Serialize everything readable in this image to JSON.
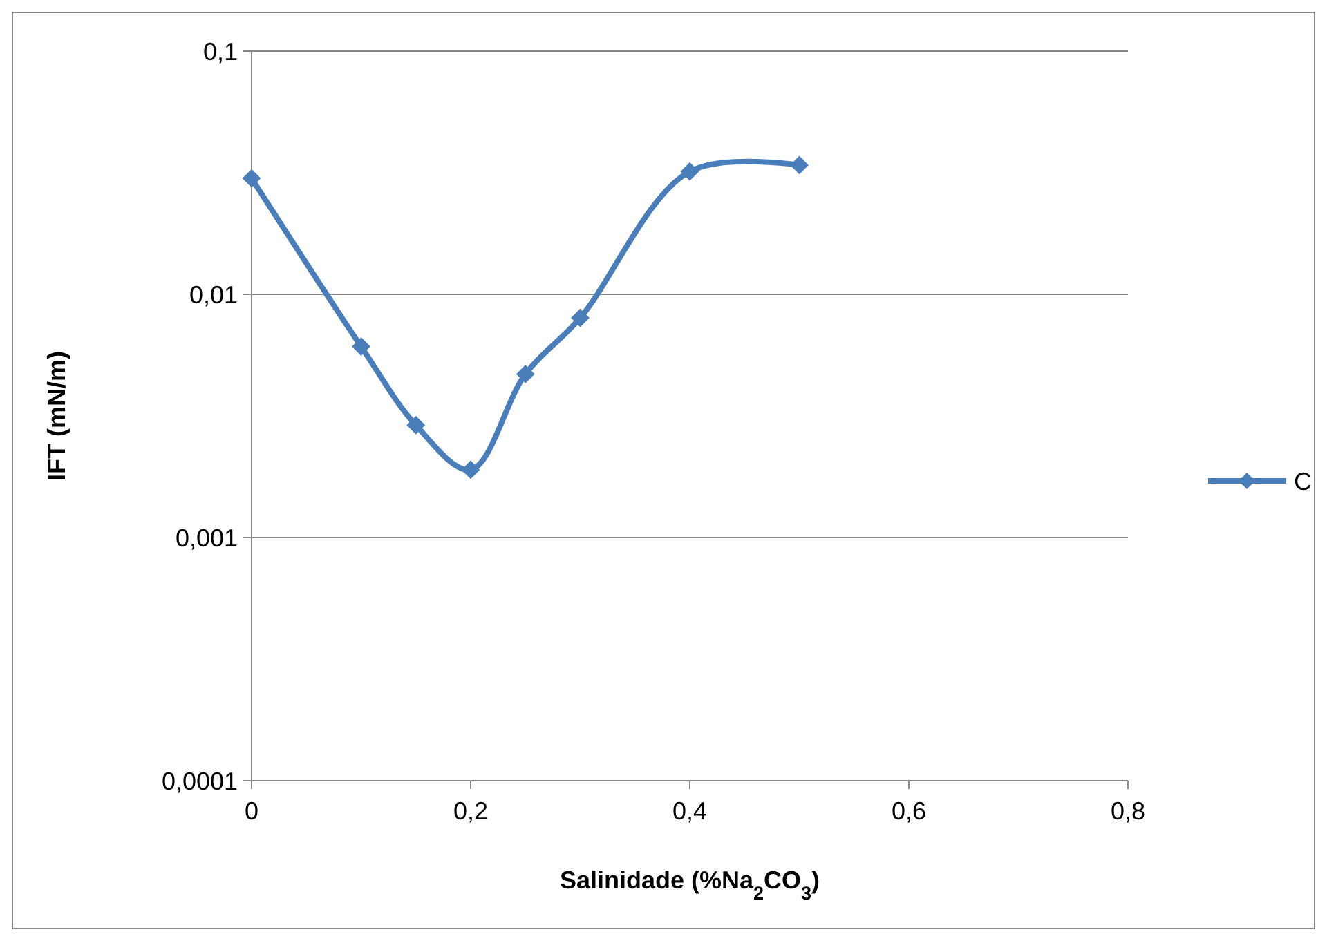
{
  "chart_data": {
    "type": "line",
    "xlabel": "Salinidade (%Na$_{2}$CO$_{3}$)",
    "ylabel": "IFT (mN/m)",
    "x": [
      0,
      0.1,
      0.15,
      0.2,
      0.25,
      0.3,
      0.4,
      0.5
    ],
    "series": [
      {
        "name": "C",
        "color": "#4a7ebb",
        "values": [
          0.03,
          0.0061,
          0.0029,
          0.0019,
          0.0047,
          0.008,
          0.032,
          0.034
        ]
      }
    ],
    "xlim": [
      0,
      0.8
    ],
    "ylim": [
      0.0001,
      0.1
    ],
    "xticks": [
      0,
      {
        "value": 0.2,
        "label": "0,2"
      },
      {
        "value": 0.4,
        "label": "0,4"
      },
      {
        "value": 0.6,
        "label": "0,6"
      },
      {
        "value": 0.8,
        "label": "0,8"
      }
    ],
    "yticks": [
      {
        "value": 0.0001,
        "label": "0,0001"
      },
      {
        "value": 0.001,
        "label": "0,001"
      },
      {
        "value": 0.01,
        "label": "0,01"
      },
      {
        "value": 0.1,
        "label": "0,1"
      }
    ],
    "log": "y",
    "grid": "y",
    "legend": "right",
    "marker": "diamond",
    "line_style": "solid"
  }
}
